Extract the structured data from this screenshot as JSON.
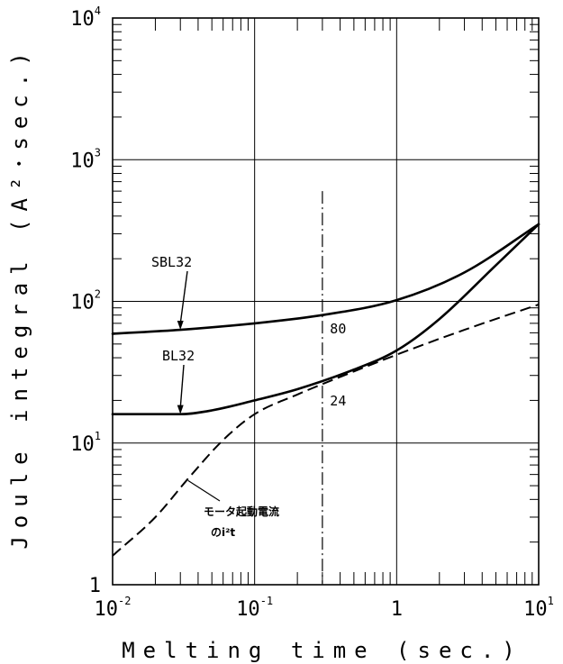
{
  "chart_data": {
    "type": "line",
    "xscale": "log",
    "yscale": "log",
    "xlim": [
      0.01,
      10
    ],
    "ylim": [
      1,
      10000
    ],
    "grid": true,
    "xlabel": "Melting time (sec.)",
    "ylabel": "Joule integral (A²･sec.)",
    "x_ticks": [
      {
        "base": "10",
        "exp": "-2"
      },
      {
        "base": "10",
        "exp": "-1"
      },
      {
        "base": "1",
        "exp": ""
      },
      {
        "base": "10",
        "exp": "1"
      }
    ],
    "y_ticks": [
      {
        "base": "1",
        "exp": ""
      },
      {
        "base": "10",
        "exp": "1"
      },
      {
        "base": "10",
        "exp": "2"
      },
      {
        "base": "10",
        "exp": "3"
      },
      {
        "base": "10",
        "exp": "4"
      }
    ],
    "series": [
      {
        "name": "SBL32",
        "style": "solid",
        "x": [
          0.01,
          0.03,
          0.1,
          0.3,
          1,
          3,
          10
        ],
        "y": [
          59,
          63,
          70,
          80,
          102,
          160,
          350
        ]
      },
      {
        "name": "BL32",
        "style": "solid",
        "x": [
          0.01,
          0.03,
          0.05,
          0.1,
          0.2,
          0.5,
          1,
          2,
          5,
          10
        ],
        "y": [
          16,
          16,
          17,
          20,
          24,
          33,
          45,
          75,
          180,
          350
        ]
      },
      {
        "name": "モータ起動電流のi²t",
        "style": "dashed",
        "x": [
          0.01,
          0.02,
          0.035,
          0.06,
          0.1,
          0.2,
          0.5,
          1,
          3,
          10
        ],
        "y": [
          1.6,
          3.0,
          5.8,
          10.5,
          16,
          22,
          32,
          42,
          63,
          95
        ]
      }
    ],
    "reference_line": {
      "x": 0.3,
      "style": "dash-dot"
    },
    "annotations": [
      {
        "text": "SBL32",
        "points_to": {
          "x": 0.03,
          "y": 63
        }
      },
      {
        "text": "BL32",
        "points_to": {
          "x": 0.03,
          "y": 16
        }
      },
      {
        "text": "80",
        "at": {
          "x": 0.32,
          "y": 58
        }
      },
      {
        "text": "24",
        "at": {
          "x": 0.32,
          "y": 20
        }
      },
      {
        "text_lines": [
          "モータ起動電流",
          "のi²t"
        ],
        "points_to": {
          "x": 0.033,
          "y": 5.6
        }
      }
    ]
  }
}
